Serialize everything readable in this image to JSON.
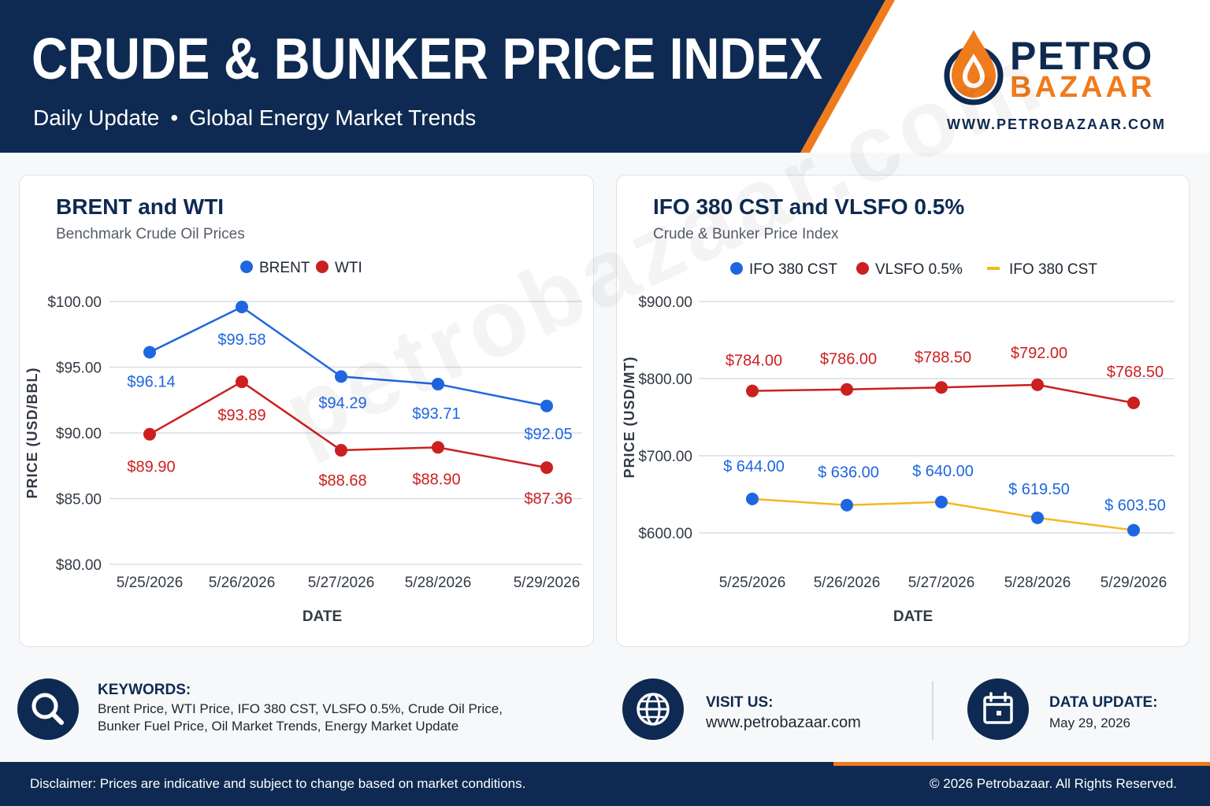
{
  "header": {
    "title": "CRUDE & BUNKER PRICE INDEX",
    "subtitle_left": "Daily Update",
    "subtitle_sep": "•",
    "subtitle_right": "Global Energy Market Trends",
    "logo_top": "PETRO",
    "logo_bottom": "BAZAAR",
    "logo_url": "WWW.PETROBAZAAR.COM"
  },
  "watermark": "petrobazaar.com",
  "colors": {
    "navy": "#0e2a52",
    "orange": "#f07b1d",
    "blue": "#1f66e0",
    "red": "#cc1f1f",
    "yellow": "#f5b81c"
  },
  "chart_data": [
    {
      "type": "line",
      "title": "BRENT and WTI",
      "subtitle": "Benchmark Crude Oil Prices",
      "xlabel": "DATE",
      "ylabel": "PRICE (USD/BBL)",
      "x": [
        "5/25/2026",
        "5/26/2026",
        "5/27/2026",
        "5/28/2026",
        "5/29/2026"
      ],
      "ylim": [
        80,
        100
      ],
      "yticks": [
        80,
        85,
        90,
        95,
        100
      ],
      "ytick_labels": [
        "$80.00",
        "$85.00",
        "$90.00",
        "$95.00",
        "$100.00"
      ],
      "grid": true,
      "legend_position": "top-center",
      "series": [
        {
          "name": "BRENT",
          "color": "#1f66e0",
          "values": [
            96.14,
            99.58,
            94.29,
            93.71,
            92.05
          ],
          "labels": [
            "$96.14",
            "$99.58",
            "$94.29",
            "$93.71",
            "$92.05"
          ]
        },
        {
          "name": "WTI",
          "color": "#cc1f1f",
          "values": [
            89.9,
            93.89,
            88.68,
            88.9,
            87.36
          ],
          "labels": [
            "$89.90",
            "$93.89",
            "$88.68",
            "$88.90",
            "$87.36"
          ]
        }
      ]
    },
    {
      "type": "line",
      "title": "IFO 380 CST and VLSFO 0.5%",
      "subtitle": "Crude & Bunker Price Index",
      "xlabel": "DATE",
      "ylabel": "PRICE (USD/MT)",
      "x": [
        "5/25/2026",
        "5/26/2026",
        "5/27/2026",
        "5/28/2026",
        "5/29/2026"
      ],
      "ylim": [
        600,
        900
      ],
      "yticks": [
        600,
        700,
        800,
        900
      ],
      "ytick_labels": [
        "$600.00",
        "$700.00",
        "$800.00",
        "$900.00"
      ],
      "grid": true,
      "legend_position": "top-center",
      "legend_extra": "IFO 380 CST",
      "series": [
        {
          "name": "IFO 380 CST",
          "color": "#1f66e0",
          "line_color": "#f5b81c",
          "values": [
            644.0,
            636.0,
            640.0,
            619.5,
            603.5
          ],
          "labels": [
            "$ 644.00",
            "$ 636.00",
            "$ 640.00",
            "$ 619.50",
            "$ 603.50"
          ]
        },
        {
          "name": "VLSFO 0.5%",
          "color": "#cc1f1f",
          "values": [
            784.0,
            786.0,
            788.5,
            792.0,
            768.5
          ],
          "labels": [
            "$784.00",
            "$786.00",
            "$788.50",
            "$792.00",
            "$768.50"
          ]
        }
      ]
    }
  ],
  "footer": {
    "keywords_head": "KEYWORDS:",
    "keywords_line1": "Brent Price, WTI Price, IFO 380 CST, VLSFO 0.5%, Crude Oil Price,",
    "keywords_line2": "Bunker Fuel Price, Oil Market Trends, Energy Market Update",
    "visit_head": "VISIT US:",
    "visit_url": "www.petrobazaar.com",
    "update_head": "DATA UPDATE:",
    "update_date": "May 29, 2026",
    "disclaimer": "Disclaimer: Prices are indicative and subject to change based on market conditions.",
    "copyright": "© 2026 Petrobazaar. All Rights Reserved."
  }
}
